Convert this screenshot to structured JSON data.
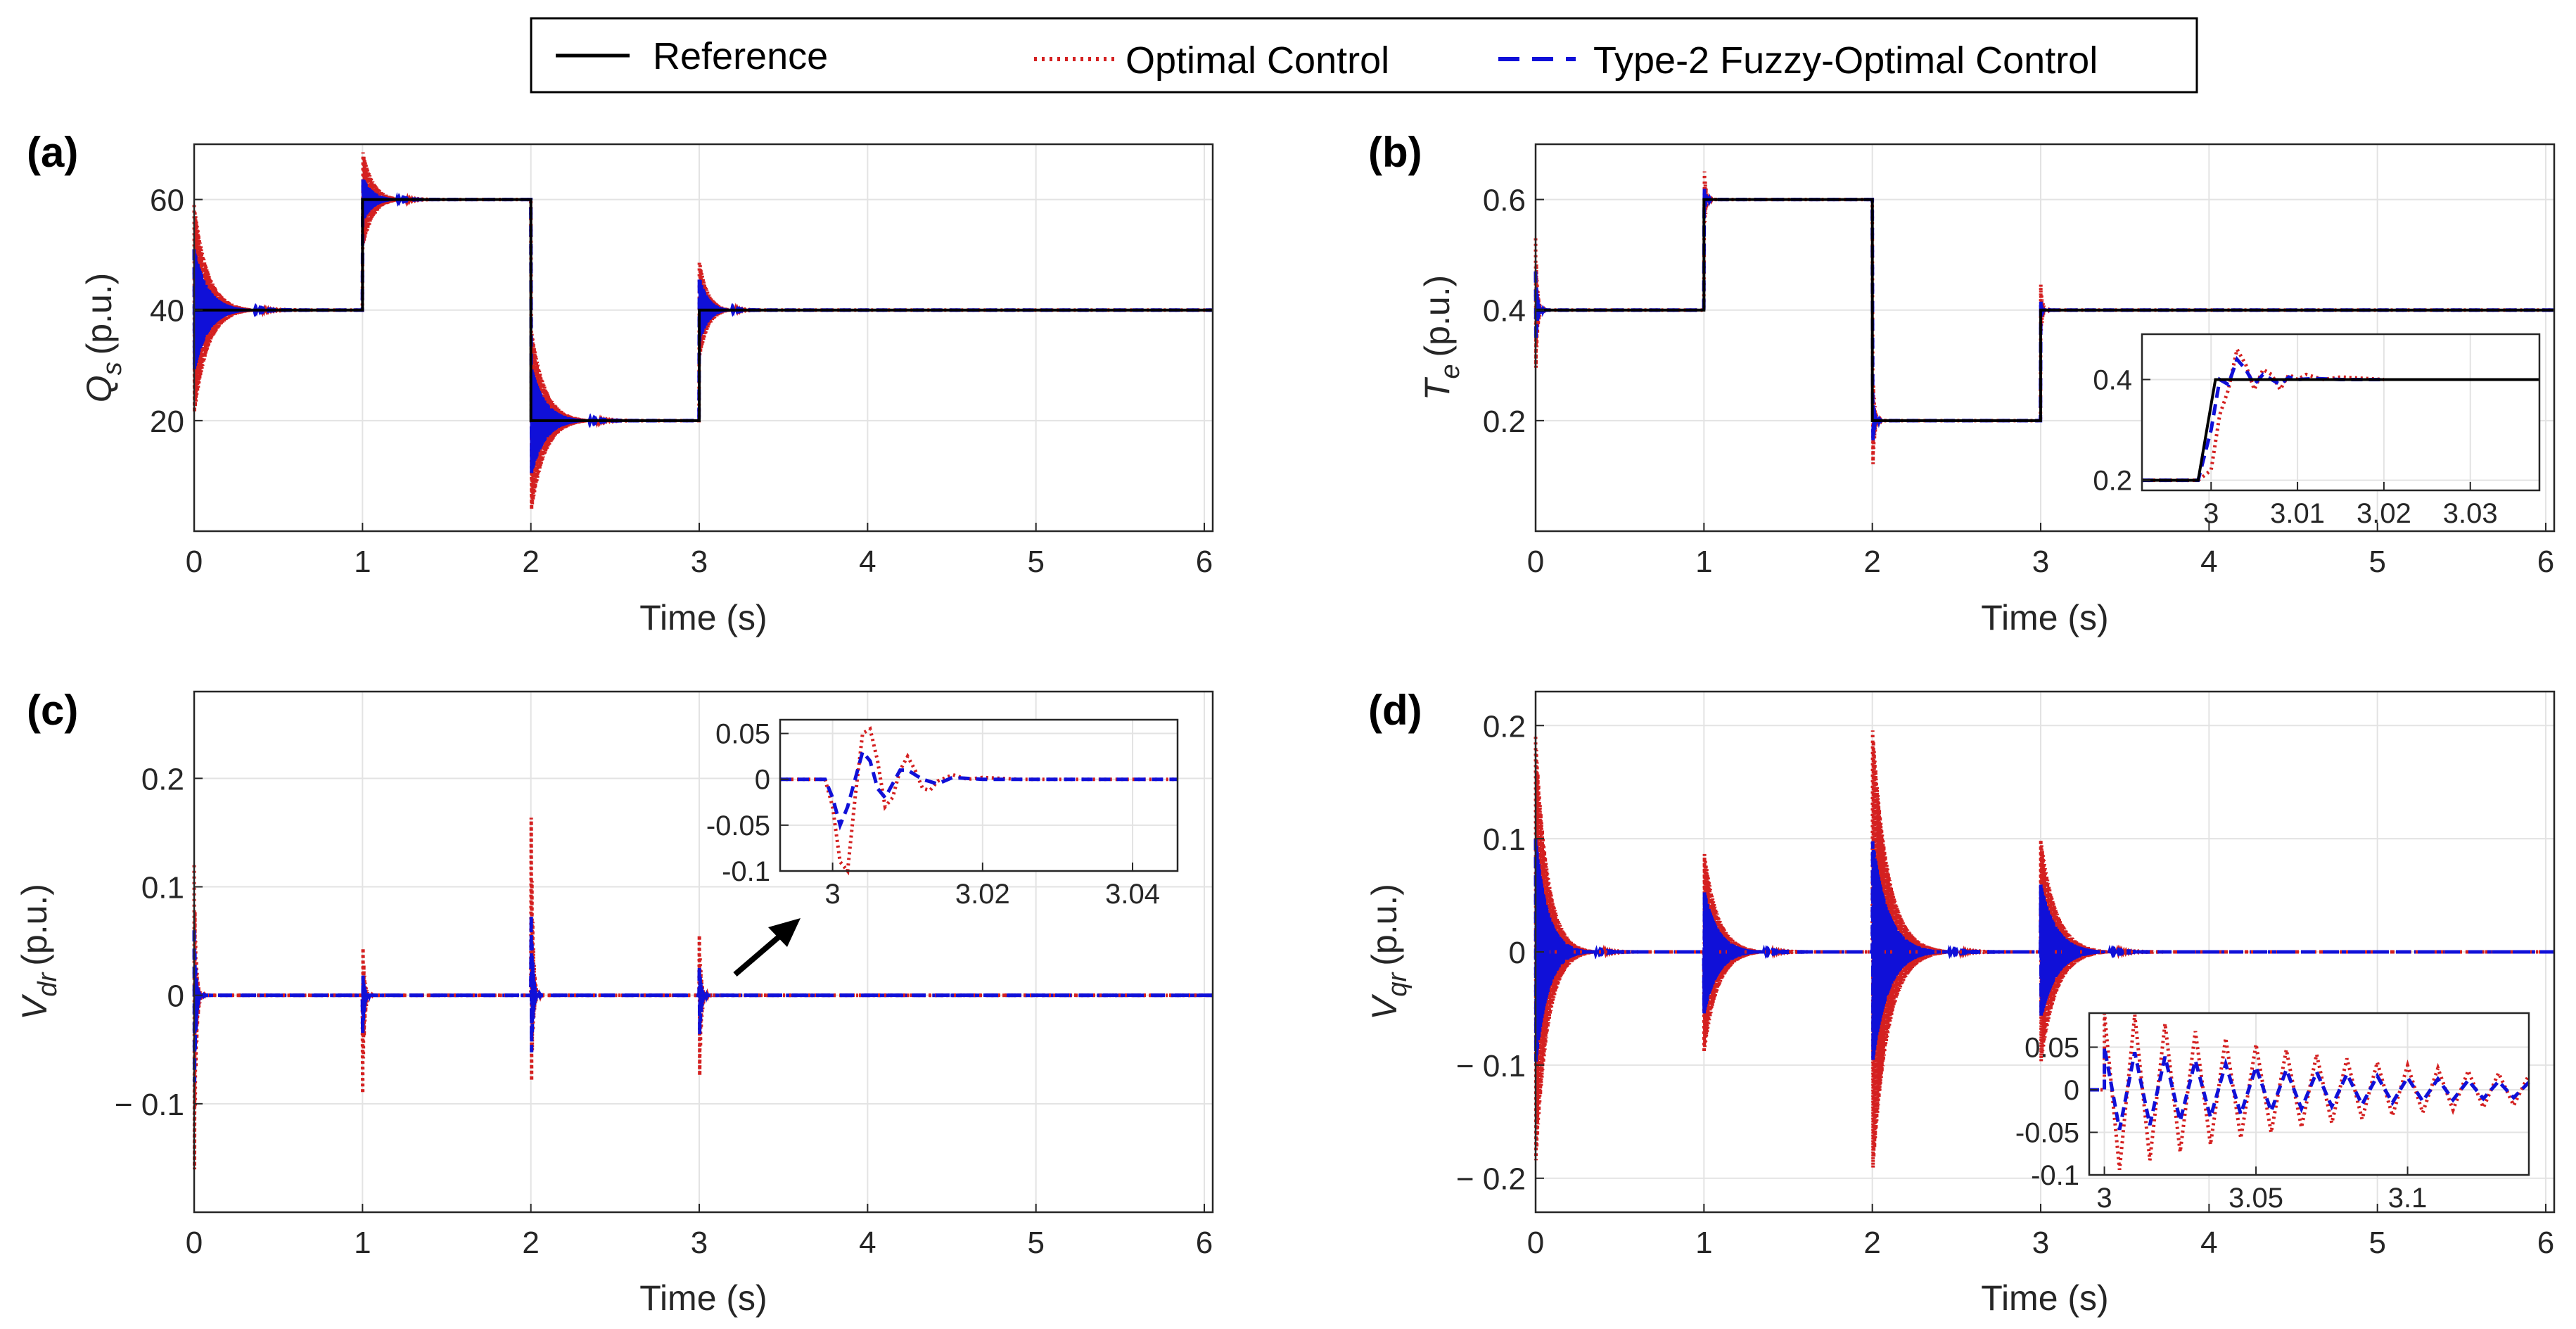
{
  "legend": {
    "entries": [
      {
        "label": "Reference",
        "color": "#000000",
        "style": "solid"
      },
      {
        "label": "Optimal Control",
        "color": "#d42020",
        "style": "dotted"
      },
      {
        "label": "Type-2 Fuzzy-Optimal Control",
        "color": "#1010d8",
        "style": "dashed"
      }
    ]
  },
  "colors": {
    "reference": "#000000",
    "optimal": "#d42020",
    "fuzzy": "#1010d8",
    "grid": "#e3e3e3"
  },
  "chart_data": [
    {
      "panel": "(a)",
      "type": "line",
      "xlabel": "Time (s)",
      "ylabel_main": "Q",
      "ylabel_sub": "s",
      "ylabel_unit": "(p.u.)",
      "xlim": [
        0,
        6.05
      ],
      "ylim": [
        0,
        70
      ],
      "xticks": [
        0,
        1,
        2,
        3,
        4,
        5,
        6
      ],
      "xticklabels": [
        "0",
        "1",
        "2",
        "3",
        "4",
        "5",
        "6"
      ],
      "yticks": [
        20,
        40,
        60
      ],
      "yticklabels": [
        "20",
        "40",
        "60"
      ],
      "reference": {
        "t": [
          0,
          1,
          2,
          3,
          6.05
        ],
        "v": [
          40,
          60,
          20,
          40,
          40
        ]
      },
      "transients": [
        {
          "t": 0,
          "from": 40,
          "to": 40,
          "opt_amp": 19,
          "fuzzy_amp": 11,
          "tau": 0.08
        },
        {
          "t": 1,
          "from": 40,
          "to": 60,
          "opt_amp": 9,
          "fuzzy_amp": 4,
          "tau": 0.06
        },
        {
          "t": 2,
          "from": 60,
          "to": 20,
          "opt_amp": 17,
          "fuzzy_amp": 10,
          "tau": 0.08
        },
        {
          "t": 3,
          "from": 20,
          "to": 40,
          "opt_amp": 9,
          "fuzzy_amp": 6,
          "tau": 0.05
        }
      ]
    },
    {
      "panel": "(b)",
      "type": "line",
      "xlabel": "Time (s)",
      "ylabel_main": "T",
      "ylabel_sub": "e",
      "ylabel_unit": "(p.u.)",
      "xlim": [
        0,
        6.05
      ],
      "ylim": [
        0,
        0.7
      ],
      "xticks": [
        0,
        1,
        2,
        3,
        4,
        5,
        6
      ],
      "xticklabels": [
        "0",
        "1",
        "2",
        "3",
        "4",
        "5",
        "6"
      ],
      "yticks": [
        0.2,
        0.4,
        0.6
      ],
      "yticklabels": [
        "0.2",
        "0.4",
        "0.6"
      ],
      "reference": {
        "t": [
          0,
          1,
          2,
          3,
          6.05
        ],
        "v": [
          0.4,
          0.6,
          0.2,
          0.4,
          0.4
        ]
      },
      "transients": [
        {
          "t": 0,
          "from": 0.4,
          "to": 0.4,
          "opt_amp": 0.13,
          "fuzzy_amp": 0.07,
          "tau": 0.01
        },
        {
          "t": 1,
          "from": 0.4,
          "to": 0.6,
          "opt_amp": 0.07,
          "fuzzy_amp": 0.03,
          "tau": 0.01
        },
        {
          "t": 2,
          "from": 0.6,
          "to": 0.2,
          "opt_amp": 0.12,
          "fuzzy_amp": 0.06,
          "tau": 0.01
        },
        {
          "t": 3,
          "from": 0.2,
          "to": 0.4,
          "opt_amp": 0.05,
          "fuzzy_amp": 0.02,
          "tau": 0.01
        }
      ],
      "inset": {
        "xlim": [
          2.992,
          3.038
        ],
        "ylim": [
          0.18,
          0.49
        ],
        "xticks": [
          3,
          3.01,
          3.02,
          3.03
        ],
        "xticklabels": [
          "3",
          "3.01",
          "3.02",
          "3.03"
        ],
        "yticks": [
          0.2,
          0.4
        ],
        "yticklabels": [
          "0.2",
          "0.4"
        ],
        "reference": {
          "t": [
            2.992,
            2.9985,
            3.0005,
            3.038
          ],
          "v": [
            0.2,
            0.2,
            0.4,
            0.4
          ]
        },
        "optimal": {
          "t": [
            2.992,
            2.9985,
            3.0,
            3.001,
            3.002,
            3.003,
            3.004,
            3.005,
            3.006,
            3.007,
            3.008,
            3.009,
            3.01,
            3.011,
            3.013,
            3.015,
            3.02
          ],
          "v": [
            0.2,
            0.2,
            0.22,
            0.33,
            0.38,
            0.46,
            0.43,
            0.38,
            0.42,
            0.41,
            0.38,
            0.41,
            0.4,
            0.41,
            0.4,
            0.405,
            0.4
          ]
        },
        "fuzzy": {
          "t": [
            2.992,
            2.9985,
            3.0,
            3.001,
            3.002,
            3.003,
            3.004,
            3.005,
            3.006,
            3.007,
            3.008,
            3.009,
            3.01,
            3.012,
            3.015,
            3.02
          ],
          "v": [
            0.2,
            0.2,
            0.3,
            0.4,
            0.39,
            0.44,
            0.42,
            0.39,
            0.41,
            0.4,
            0.39,
            0.405,
            0.4,
            0.402,
            0.4,
            0.4
          ]
        }
      }
    },
    {
      "panel": "(c)",
      "type": "line",
      "xlabel": "Time (s)",
      "ylabel_main": "V",
      "ylabel_sub": "dr",
      "ylabel_unit": "(p.u.)",
      "xlim": [
        0,
        6.05
      ],
      "ylim": [
        -0.2,
        0.28
      ],
      "xticks": [
        0,
        1,
        2,
        3,
        4,
        5,
        6
      ],
      "xticklabels": [
        "0",
        "1",
        "2",
        "3",
        "4",
        "5",
        "6"
      ],
      "yticks": [
        -0.1,
        0,
        0.1,
        0.2
      ],
      "yticklabels": [
        "− 0.1",
        "0",
        "0.1",
        "0.2"
      ],
      "reference": {
        "t": [
          0,
          6.05
        ],
        "v": [
          0,
          0
        ]
      },
      "transients": [
        {
          "t": 0,
          "from": 0,
          "to": 0,
          "opt_amp": 0.12,
          "opt_min": -0.2,
          "fuzzy_amp": 0.06,
          "fuzzy_min": -0.1,
          "tau": 0.01
        },
        {
          "t": 1,
          "from": 0,
          "to": 0,
          "opt_amp": 0.06,
          "opt_min": -0.1,
          "fuzzy_amp": 0.025,
          "fuzzy_min": -0.04,
          "tau": 0.01
        },
        {
          "t": 2,
          "from": 0,
          "to": 0,
          "opt_amp": 0.2,
          "opt_min": -0.12,
          "fuzzy_amp": 0.09,
          "fuzzy_min": -0.08,
          "tau": 0.01
        },
        {
          "t": 3,
          "from": 0,
          "to": 0,
          "opt_amp": 0.06,
          "opt_min": -0.1,
          "fuzzy_amp": 0.03,
          "fuzzy_min": -0.05,
          "tau": 0.01
        }
      ],
      "inset": {
        "xlim": [
          2.993,
          3.046
        ],
        "ylim": [
          -0.1,
          0.065
        ],
        "xticks": [
          3,
          3.02,
          3.04
        ],
        "xticklabels": [
          "3",
          "3.02",
          "3.04"
        ],
        "yticks": [
          -0.1,
          -0.05,
          0,
          0.05
        ],
        "yticklabels": [
          "-0.1",
          "-0.05",
          "0",
          "0.05"
        ],
        "optimal": {
          "t": [
            2.993,
            2.999,
            3.0,
            3.001,
            3.002,
            3.003,
            3.004,
            3.005,
            3.006,
            3.007,
            3.008,
            3.009,
            3.01,
            3.011,
            3.012,
            3.013,
            3.014,
            3.016,
            3.018,
            3.02,
            3.025,
            3.046
          ],
          "v": [
            0,
            0,
            -0.03,
            -0.09,
            -0.1,
            -0.02,
            0.05,
            0.055,
            0.02,
            -0.03,
            -0.02,
            0.01,
            0.025,
            0.01,
            -0.01,
            -0.012,
            -0.002,
            0.005,
            0.0,
            0.002,
            0,
            0
          ]
        },
        "fuzzy": {
          "t": [
            2.993,
            2.999,
            3.0,
            3.001,
            3.002,
            3.003,
            3.004,
            3.005,
            3.006,
            3.007,
            3.008,
            3.009,
            3.01,
            3.012,
            3.014,
            3.016,
            3.02,
            3.046
          ],
          "v": [
            0,
            0,
            -0.02,
            -0.05,
            -0.03,
            0.0,
            0.03,
            0.02,
            -0.01,
            -0.02,
            -0.005,
            0.01,
            0.01,
            0.0,
            -0.005,
            0.002,
            0,
            0
          ]
        }
      }
    },
    {
      "panel": "(d)",
      "type": "line",
      "xlabel": "Time (s)",
      "ylabel_main": "V",
      "ylabel_sub": "qr",
      "ylabel_unit": "(p.u.)",
      "xlim": [
        0,
        6.05
      ],
      "ylim": [
        -0.23,
        0.23
      ],
      "xticks": [
        0,
        1,
        2,
        3,
        4,
        5,
        6
      ],
      "xticklabels": [
        "0",
        "1",
        "2",
        "3",
        "4",
        "5",
        "6"
      ],
      "yticks": [
        -0.2,
        -0.1,
        0,
        0.1,
        0.2
      ],
      "yticklabels": [
        "− 0.2",
        "− 0.1",
        "0",
        "0.1",
        "0.2"
      ],
      "reference": {
        "t": [
          0,
          6.05
        ],
        "v": [
          0,
          0
        ]
      },
      "transients": [
        {
          "t": 0,
          "from": 0,
          "to": 0,
          "opt_amp": 0.19,
          "fuzzy_amp": 0.1,
          "tau": 0.07
        },
        {
          "t": 1,
          "from": 0,
          "to": 0,
          "opt_amp": 0.09,
          "fuzzy_amp": 0.055,
          "tau": 0.08
        },
        {
          "t": 2,
          "from": 0,
          "to": 0,
          "opt_amp": 0.2,
          "fuzzy_amp": 0.1,
          "tau": 0.09
        },
        {
          "t": 3,
          "from": 0,
          "to": 0,
          "opt_amp": 0.1,
          "fuzzy_amp": 0.06,
          "tau": 0.09
        }
      ],
      "inset": {
        "xlim": [
          2.995,
          3.14
        ],
        "ylim": [
          -0.1,
          0.09
        ],
        "xticks": [
          3,
          3.05,
          3.1
        ],
        "xticklabels": [
          "3",
          "3.05",
          "3.1"
        ],
        "yticks": [
          -0.1,
          -0.05,
          0,
          0.05
        ],
        "yticklabels": [
          "-0.1",
          "-0.05",
          "0",
          "0.05"
        ],
        "osc": {
          "start": 3.0,
          "period": 0.01,
          "opt_amp": 0.1,
          "fuzzy_amp": 0.05,
          "tau": 0.08
        }
      }
    }
  ]
}
